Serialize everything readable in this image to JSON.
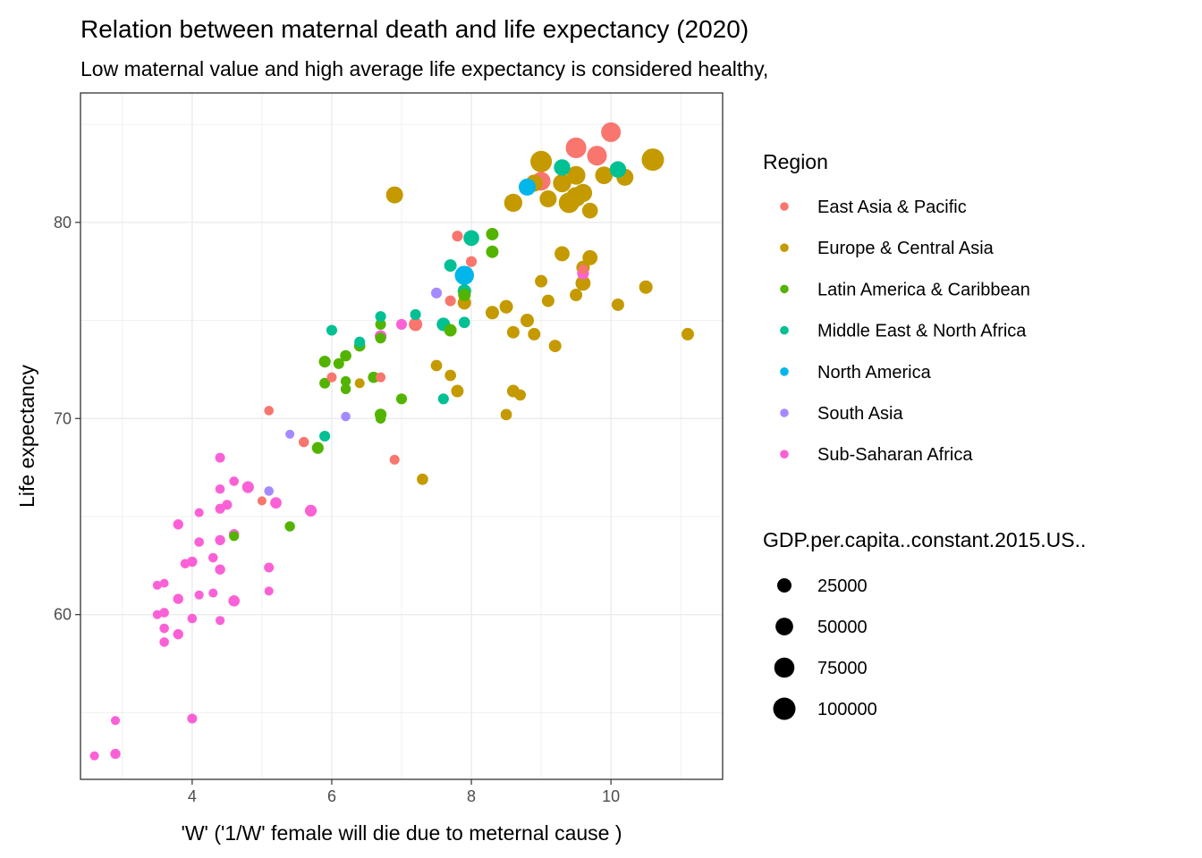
{
  "chart_data": {
    "type": "scatter",
    "title": "Relation between maternal death and life expectancy (2020)",
    "subtitle": "Low maternal value and high average life expectancy is considered healthy,",
    "xlabel": "'W' ('1/W' female will die due to meternal cause )",
    "ylabel": "Life expectancy",
    "xlim": [
      2.4,
      11.6
    ],
    "ylim": [
      51.6,
      86.6
    ],
    "x_ticks": [
      4,
      6,
      8,
      10
    ],
    "y_ticks": [
      60,
      70,
      80
    ],
    "grid": true,
    "legend_position": "right",
    "color_legend": {
      "title": "Region",
      "items": [
        {
          "label": "East Asia & Pacific",
          "color": "#F8766D"
        },
        {
          "label": "Europe & Central Asia",
          "color": "#C49A00"
        },
        {
          "label": "Latin America & Caribbean",
          "color": "#53B400"
        },
        {
          "label": "Middle East & North Africa",
          "color": "#00C094"
        },
        {
          "label": "North America",
          "color": "#00B6EB"
        },
        {
          "label": "South Asia",
          "color": "#A58AFF"
        },
        {
          "label": "Sub-Saharan Africa",
          "color": "#FB61D7"
        }
      ]
    },
    "size_legend": {
      "title": "GDP.per.capita..constant.2015.US..",
      "items": [
        {
          "label": "25000",
          "value": 25000
        },
        {
          "label": "50000",
          "value": 50000
        },
        {
          "label": "75000",
          "value": 75000
        },
        {
          "label": "100000",
          "value": 100000
        }
      ]
    },
    "series": [
      {
        "name": "East Asia & Pacific",
        "points": [
          [
            10.0,
            84.6,
            70000
          ],
          [
            9.5,
            83.8,
            80000
          ],
          [
            9.8,
            83.4,
            70000
          ],
          [
            9.0,
            82.1,
            60000
          ],
          [
            7.8,
            79.3,
            8000
          ],
          [
            8.0,
            78.0,
            8000
          ],
          [
            7.7,
            76.0,
            8000
          ],
          [
            7.2,
            74.8,
            20000
          ],
          [
            6.0,
            72.1,
            5000
          ],
          [
            6.7,
            72.1,
            5000
          ],
          [
            5.1,
            70.4,
            4000
          ],
          [
            5.6,
            68.8,
            6000
          ],
          [
            6.9,
            67.9,
            5000
          ],
          [
            5.0,
            65.8,
            3000
          ],
          [
            9.6,
            77.6,
            5000
          ]
        ]
      },
      {
        "name": "Europe & Central Asia",
        "points": [
          [
            10.6,
            83.2,
            100000
          ],
          [
            9.0,
            83.1,
            90000
          ],
          [
            9.5,
            82.4,
            60000
          ],
          [
            9.9,
            82.4,
            50000
          ],
          [
            10.2,
            82.3,
            45000
          ],
          [
            8.9,
            82.0,
            45000
          ],
          [
            9.3,
            82.0,
            55000
          ],
          [
            9.1,
            81.2,
            45000
          ],
          [
            9.6,
            81.5,
            55000
          ],
          [
            9.4,
            81.0,
            80000
          ],
          [
            9.5,
            81.3,
            70000
          ],
          [
            8.6,
            81.0,
            55000
          ],
          [
            6.9,
            81.4,
            45000
          ],
          [
            9.7,
            80.6,
            35000
          ],
          [
            9.3,
            78.4,
            30000
          ],
          [
            9.7,
            78.2,
            30000
          ],
          [
            9.6,
            76.9,
            30000
          ],
          [
            9.6,
            77.7,
            20000
          ],
          [
            9.0,
            77.0,
            15000
          ],
          [
            9.1,
            76.0,
            15000
          ],
          [
            9.5,
            76.3,
            15000
          ],
          [
            10.5,
            76.7,
            20000
          ],
          [
            10.1,
            75.8,
            15000
          ],
          [
            11.1,
            74.3,
            15000
          ],
          [
            8.5,
            75.7,
            20000
          ],
          [
            8.3,
            75.4,
            20000
          ],
          [
            7.9,
            75.9,
            20000
          ],
          [
            8.8,
            75.0,
            20000
          ],
          [
            8.6,
            74.4,
            15000
          ],
          [
            8.9,
            74.3,
            15000
          ],
          [
            9.2,
            73.7,
            15000
          ],
          [
            7.5,
            72.7,
            10000
          ],
          [
            7.7,
            72.2,
            10000
          ],
          [
            7.8,
            71.4,
            15000
          ],
          [
            8.6,
            71.4,
            15000
          ],
          [
            8.7,
            71.2,
            10000
          ],
          [
            8.5,
            70.2,
            10000
          ],
          [
            7.3,
            66.9,
            10000
          ],
          [
            6.4,
            71.8,
            5000
          ]
        ]
      },
      {
        "name": "Latin America & Caribbean",
        "points": [
          [
            8.3,
            79.4,
            15000
          ],
          [
            8.3,
            78.5,
            15000
          ],
          [
            7.9,
            76.3,
            15000
          ],
          [
            7.7,
            74.5,
            15000
          ],
          [
            5.9,
            72.9,
            12000
          ],
          [
            6.2,
            73.2,
            10000
          ],
          [
            6.4,
            73.7,
            10000
          ],
          [
            6.7,
            74.8,
            8000
          ],
          [
            6.7,
            74.1,
            8000
          ],
          [
            6.1,
            72.8,
            8000
          ],
          [
            6.2,
            71.9,
            6000
          ],
          [
            5.9,
            71.8,
            8000
          ],
          [
            6.6,
            72.1,
            10000
          ],
          [
            6.2,
            71.5,
            6000
          ],
          [
            6.7,
            70.2,
            12000
          ],
          [
            7.0,
            71.0,
            8000
          ],
          [
            6.7,
            70.0,
            6000
          ],
          [
            5.8,
            68.5,
            12000
          ],
          [
            5.4,
            64.5,
            6000
          ],
          [
            4.6,
            64.0,
            5000
          ]
        ]
      },
      {
        "name": "Middle East & North Africa",
        "points": [
          [
            9.3,
            82.8,
            40000
          ],
          [
            10.1,
            82.7,
            40000
          ],
          [
            8.0,
            79.2,
            35000
          ],
          [
            7.7,
            77.8,
            15000
          ],
          [
            7.9,
            76.5,
            20000
          ],
          [
            6.7,
            75.2,
            8000
          ],
          [
            7.2,
            75.3,
            8000
          ],
          [
            6.0,
            74.5,
            8000
          ],
          [
            6.4,
            73.9,
            8000
          ],
          [
            7.9,
            74.9,
            10000
          ],
          [
            7.6,
            74.8,
            20000
          ],
          [
            7.6,
            71.0,
            8000
          ],
          [
            5.9,
            69.1,
            8000
          ]
        ]
      },
      {
        "name": "North America",
        "points": [
          [
            7.9,
            77.3,
            65000
          ],
          [
            8.8,
            81.8,
            45000
          ]
        ]
      },
      {
        "name": "South Asia",
        "points": [
          [
            7.5,
            76.4,
            8000
          ],
          [
            6.2,
            70.1,
            4000
          ],
          [
            5.4,
            69.2,
            3000
          ],
          [
            5.1,
            66.3,
            4000
          ]
        ]
      },
      {
        "name": "Sub-Saharan Africa",
        "points": [
          [
            9.6,
            77.4,
            12000
          ],
          [
            7.0,
            74.8,
            8000
          ],
          [
            6.7,
            74.2,
            12000
          ],
          [
            4.4,
            68.0,
            5000
          ],
          [
            4.6,
            66.8,
            4000
          ],
          [
            4.8,
            66.5,
            12000
          ],
          [
            4.4,
            66.4,
            4000
          ],
          [
            5.2,
            65.7,
            10000
          ],
          [
            4.5,
            65.6,
            5000
          ],
          [
            4.4,
            65.4,
            5000
          ],
          [
            5.7,
            65.3,
            12000
          ],
          [
            4.1,
            65.2,
            3000
          ],
          [
            3.8,
            64.6,
            6000
          ],
          [
            4.6,
            64.1,
            6000
          ],
          [
            4.4,
            63.8,
            6000
          ],
          [
            4.1,
            63.7,
            4000
          ],
          [
            4.3,
            62.9,
            4000
          ],
          [
            3.9,
            62.6,
            4000
          ],
          [
            4.0,
            62.7,
            6000
          ],
          [
            5.1,
            62.4,
            5000
          ],
          [
            4.4,
            62.3,
            6000
          ],
          [
            3.5,
            61.5,
            3000
          ],
          [
            3.6,
            61.6,
            2500
          ],
          [
            5.1,
            61.2,
            3000
          ],
          [
            4.3,
            61.1,
            3000
          ],
          [
            4.1,
            61.0,
            3000
          ],
          [
            3.8,
            60.8,
            6000
          ],
          [
            4.6,
            60.7,
            10000
          ],
          [
            3.5,
            60.0,
            3000
          ],
          [
            3.6,
            60.1,
            4000
          ],
          [
            4.0,
            59.8,
            4000
          ],
          [
            4.4,
            59.7,
            3000
          ],
          [
            3.6,
            59.3,
            4000
          ],
          [
            3.8,
            59.0,
            6000
          ],
          [
            3.6,
            58.6,
            4000
          ],
          [
            4.0,
            54.7,
            5000
          ],
          [
            2.9,
            54.6,
            3000
          ],
          [
            2.9,
            52.9,
            6000
          ],
          [
            2.6,
            52.8,
            3000
          ]
        ]
      }
    ]
  }
}
